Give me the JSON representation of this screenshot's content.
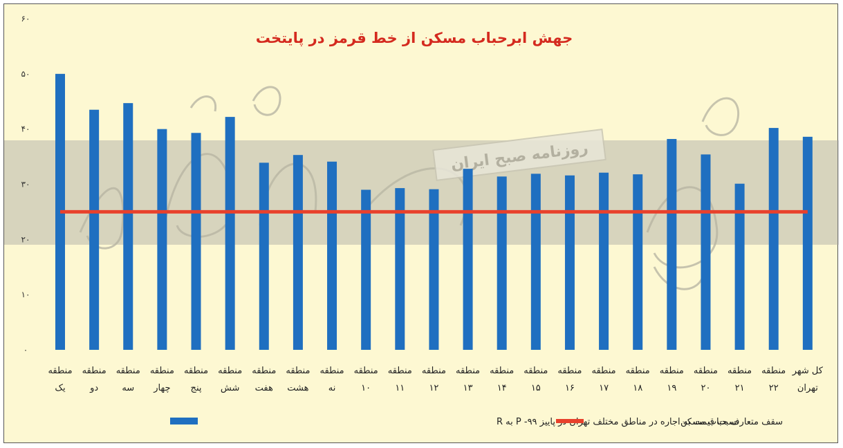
{
  "chart_data": {
    "type": "bar",
    "title": "جهش ابرحباب مسکن از خط قرمز در پایتخت",
    "watermark": "روزنامه صبح ایران",
    "y_tick_labels": [
      "۰",
      "۱۰",
      "۲۰",
      "۳۰",
      "۴۰",
      "۵۰",
      "۶۰"
    ],
    "ylim": [
      0,
      60
    ],
    "grid": false,
    "legend_position": "bottom",
    "categories": [
      [
        "منطقه",
        "یک"
      ],
      [
        "منطقه",
        "دو"
      ],
      [
        "منطقه",
        "سه"
      ],
      [
        "منطقه",
        "چهار"
      ],
      [
        "منطقه",
        "پنج"
      ],
      [
        "منطقه",
        "شش"
      ],
      [
        "منطقه",
        "هفت"
      ],
      [
        "منطقه",
        "هشت"
      ],
      [
        "منطقه",
        "نه"
      ],
      [
        "منطقه",
        "۱۰"
      ],
      [
        "منطقه",
        "۱۱"
      ],
      [
        "منطقه",
        "۱۲"
      ],
      [
        "منطقه",
        "۱۳"
      ],
      [
        "منطقه",
        "۱۴"
      ],
      [
        "منطقه",
        "۱۵"
      ],
      [
        "منطقه",
        "۱۶"
      ],
      [
        "منطقه",
        "۱۷"
      ],
      [
        "منطقه",
        "۱۸"
      ],
      [
        "منطقه",
        "۱۹"
      ],
      [
        "منطقه",
        "۲۰"
      ],
      [
        "منطقه",
        "۲۱"
      ],
      [
        "منطقه",
        "۲۲"
      ],
      [
        "کل شهر",
        "تهران"
      ]
    ],
    "series": [
      {
        "name": "نسبت قیمت به اجاره در مناطق مختلف تهران در پاییز ۹۹- P به R",
        "kind": "bar",
        "color": "#1f6fc0",
        "values": [
          50,
          43.5,
          44.7,
          40,
          39.3,
          42.2,
          33.9,
          35.3,
          34.1,
          29,
          29.3,
          29.1,
          32.8,
          31.4,
          31.9,
          31.6,
          32.1,
          31.8,
          38.2,
          35.4,
          30.1,
          40.2,
          38.6
        ]
      },
      {
        "name": "سقف متعارف حباب مسکن",
        "kind": "line",
        "color": "#e8412c",
        "values": [
          25,
          25,
          25,
          25,
          25,
          25,
          25,
          25,
          25,
          25,
          25,
          25,
          25,
          25,
          25,
          25,
          25,
          25,
          25,
          25,
          25,
          25,
          25
        ]
      }
    ]
  }
}
